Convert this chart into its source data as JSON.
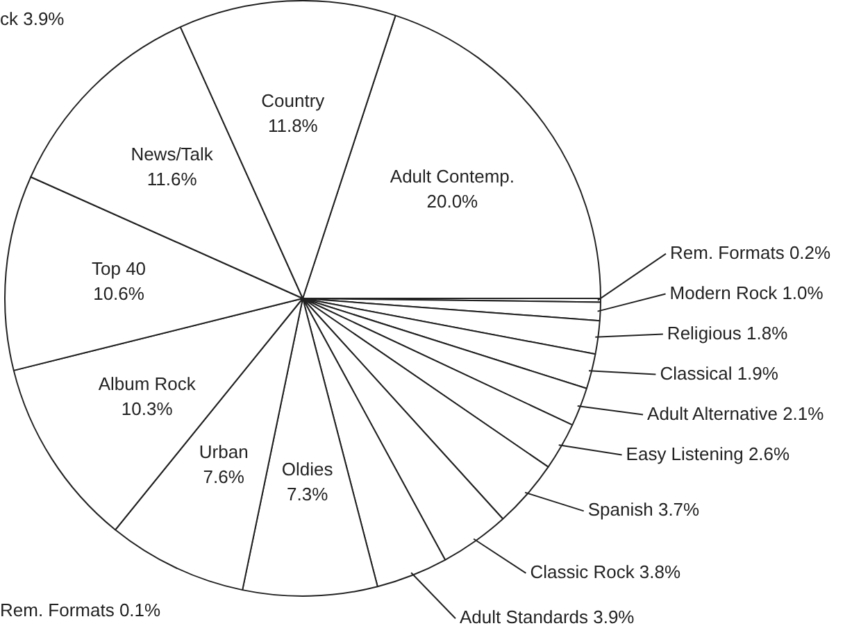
{
  "chart_data": {
    "type": "pie",
    "categories": [
      "Adult Contemp.",
      "Rem. Formats",
      "Modern Rock",
      "Religious",
      "Classical",
      "Adult Alternative",
      "Easy Listening",
      "Spanish",
      "Classic Rock",
      "Adult Standards",
      "Oldies",
      "Urban",
      "Album Rock",
      "Top 40",
      "News/Talk",
      "Country"
    ],
    "values": [
      20.0,
      0.2,
      1.0,
      1.8,
      1.9,
      2.1,
      2.6,
      3.7,
      3.8,
      3.9,
      7.3,
      7.6,
      10.3,
      10.6,
      11.6,
      11.8
    ],
    "value_labels": [
      "20.0%",
      "0.2%",
      "1.0%",
      "1.8%",
      "1.9%",
      "2.1%",
      "2.6%",
      "3.7%",
      "3.8%",
      "3.9%",
      "7.3%",
      "7.6%",
      "10.3%",
      "10.6%",
      "11.6%",
      "11.8%"
    ],
    "colors": [
      "#ffffff",
      "#ffffff",
      "#ffffff",
      "#ffffff",
      "#ffffff",
      "#ffffff",
      "#ffffff",
      "#ffffff",
      "#ffffff",
      "#ffffff",
      "#ffffff",
      "#ffffff",
      "#ffffff",
      "#ffffff",
      "#ffffff",
      "#ffffff"
    ],
    "annotations": [
      "ck 3.9%",
      "Rem. Formats 0.1%"
    ],
    "legend": false
  }
}
